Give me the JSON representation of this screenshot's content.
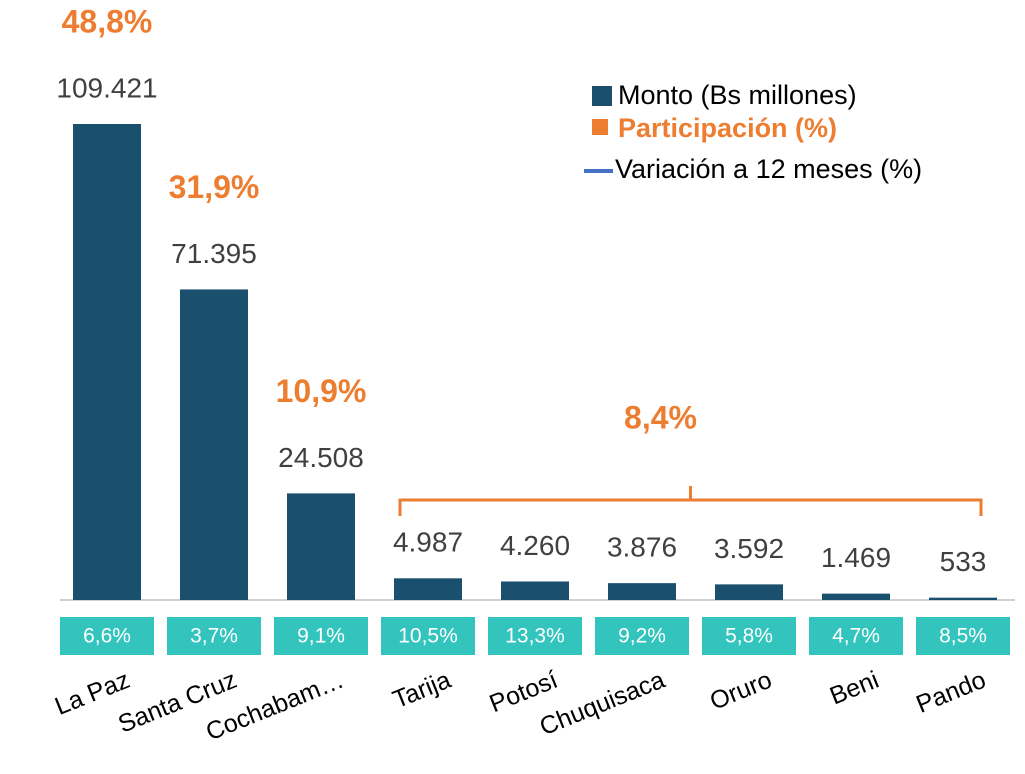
{
  "chart_data": {
    "type": "bar",
    "categories": [
      "La Paz",
      "Santa Cruz",
      "Cochabam…",
      "Tarija",
      "Potosí",
      "Chuquisaca",
      "Oruro",
      "Beni",
      "Pando"
    ],
    "series": [
      {
        "name": "Monto (Bs millones)",
        "color": "#1b4f6e",
        "values": [
          109421,
          71395,
          24508,
          4987,
          4260,
          3876,
          3592,
          1469,
          533
        ],
        "value_labels": [
          "109.421",
          "71.395",
          "24.508",
          "4.987",
          "4.260",
          "3.876",
          "3.592",
          "1.469",
          "533"
        ]
      },
      {
        "name": "Participación (%)",
        "color": "#ed7d31",
        "values": [
          48.8,
          31.9,
          10.9,
          null,
          null,
          null,
          null,
          null,
          null
        ],
        "value_labels": [
          "48,8%",
          "31,9%",
          "10,9%",
          null,
          null,
          null,
          null,
          null,
          null
        ]
      },
      {
        "name": "Variación a 12 meses (%)",
        "color": "#4472c4",
        "box_color": "#33c4be",
        "values": [
          6.6,
          3.7,
          9.1,
          10.5,
          13.3,
          9.2,
          5.8,
          4.7,
          8.5
        ],
        "value_labels": [
          "6,6%",
          "3,7%",
          "9,1%",
          "10,5%",
          "13,3%",
          "9,2%",
          "5,8%",
          "4,7%",
          "8,5%"
        ]
      }
    ],
    "annotations": [
      {
        "value": 8.4,
        "label": "8,4%"
      }
    ]
  }
}
